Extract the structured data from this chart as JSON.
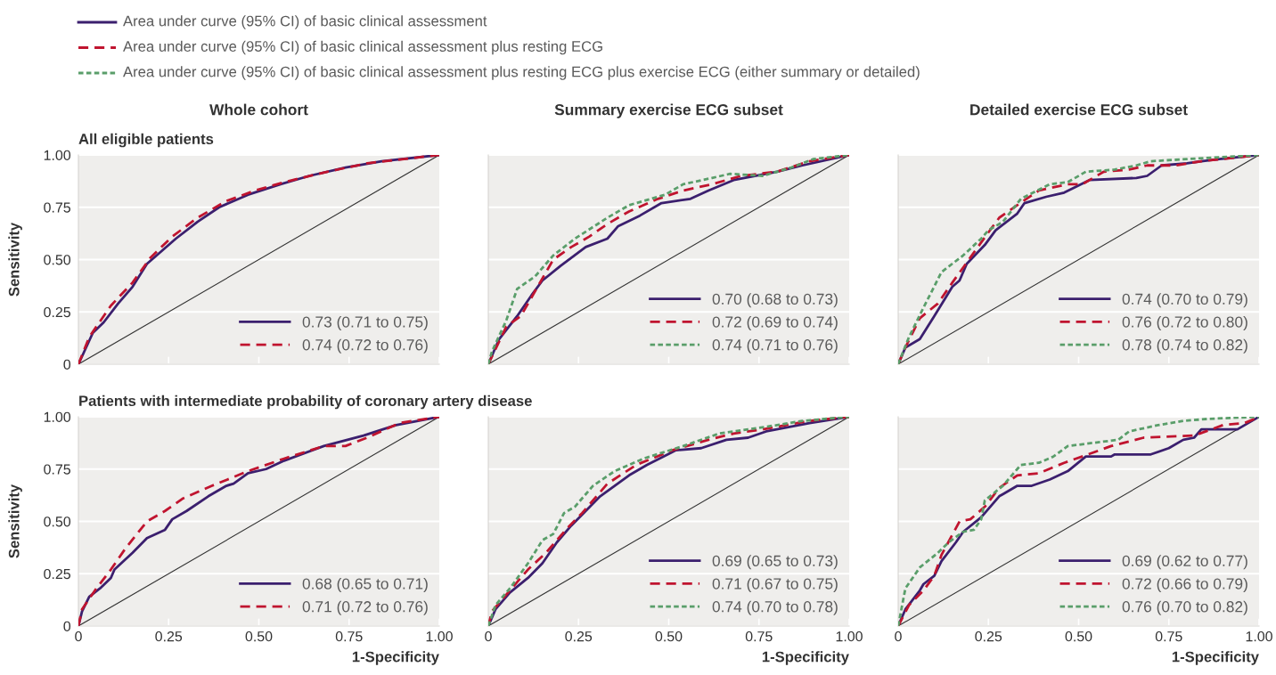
{
  "chart_data": [
    {
      "type": "line",
      "title": "Whole cohort",
      "subtitle": "All eligible patients",
      "ylabel": "Sensitivity",
      "annotations": [
        "Area under curve (95% CI) of basic clinical assessment",
        "Area under curve (95% CI) of basic clinical assessment plus resting ECG",
        "Area under curve (95% CI) of basic clinical assessment plus resting ECG plus exercise ECG (either summary or detailed)"
      ],
      "xlim": [
        0,
        1
      ],
      "ylim": [
        0,
        1
      ],
      "xticks": [
        {
          "value": 0,
          "label": null
        },
        {
          "value": 0.25,
          "label": null
        },
        {
          "value": 0.5,
          "label": null
        },
        {
          "value": 0.75,
          "label": null
        },
        {
          "value": 1,
          "label": null
        }
      ],
      "yticks": [
        {
          "value": 0,
          "label": "0"
        },
        {
          "value": 0.25,
          "label": "0.25"
        },
        {
          "value": 0.5,
          "label": "0.50"
        },
        {
          "value": 0.75,
          "label": "0.75"
        },
        {
          "value": 1,
          "label": "1.00"
        }
      ],
      "grid": "y",
      "legend": "bottom right",
      "tick_labels": "y",
      "series": [
        {
          "color": "#333333",
          "line_style": "solid",
          "x": [
            0,
            1
          ],
          "values": [
            0,
            1
          ]
        },
        {
          "name": "0.73 (0.71 to 0.75)",
          "color": "#3b1f6e",
          "line_style": "solid",
          "x": [
            0,
            0.04,
            0.07,
            0.11,
            0.15,
            0.19,
            0.27,
            0.33,
            0.39,
            0.47,
            0.56,
            0.64,
            0.74,
            0.84,
            1
          ],
          "values": [
            0,
            0.15,
            0.2,
            0.29,
            0.37,
            0.48,
            0.6,
            0.68,
            0.75,
            0.81,
            0.86,
            0.9,
            0.94,
            0.97,
            1
          ]
        },
        {
          "name": "0.74 (0.72 to 0.76)",
          "color": "#c0142f",
          "line_style": "dashed",
          "x": [
            0,
            0.03,
            0.09,
            0.15,
            0.2,
            0.26,
            0.33,
            0.41,
            0.49,
            0.57,
            0.69,
            0.8,
            1
          ],
          "values": [
            0,
            0.13,
            0.28,
            0.39,
            0.51,
            0.61,
            0.7,
            0.78,
            0.83,
            0.87,
            0.92,
            0.96,
            1
          ]
        }
      ]
    },
    {
      "type": "line",
      "title": "Summary exercise ECG subset",
      "xlim": [
        0,
        1
      ],
      "ylim": [
        0,
        1
      ],
      "xticks": [
        {
          "value": 0,
          "label": null
        },
        {
          "value": 0.25,
          "label": null
        },
        {
          "value": 0.5,
          "label": null
        },
        {
          "value": 0.75,
          "label": null
        },
        {
          "value": 1,
          "label": null
        }
      ],
      "yticks": [
        {
          "value": 0,
          "label": null
        },
        {
          "value": 0.25,
          "label": null
        },
        {
          "value": 0.5,
          "label": null
        },
        {
          "value": 0.75,
          "label": null
        },
        {
          "value": 1,
          "label": null
        }
      ],
      "grid": "y",
      "legend": "bottom right",
      "tick_labels": false,
      "series": [
        {
          "color": "#333333",
          "line_style": "solid",
          "x": [
            0,
            1
          ],
          "values": [
            0,
            1
          ]
        },
        {
          "name": "0.70 (0.68 to 0.73)",
          "color": "#3b1f6e",
          "line_style": "solid",
          "x": [
            0,
            0.03,
            0.08,
            0.12,
            0.15,
            0.2,
            0.27,
            0.33,
            0.36,
            0.42,
            0.48,
            0.56,
            0.61,
            0.68,
            0.8,
            0.87,
            1
          ],
          "values": [
            0,
            0.12,
            0.23,
            0.33,
            0.4,
            0.47,
            0.56,
            0.6,
            0.66,
            0.71,
            0.77,
            0.79,
            0.83,
            0.88,
            0.92,
            0.95,
            1
          ]
        },
        {
          "name": "0.72 (0.69 to 0.74)",
          "color": "#c0142f",
          "line_style": "dashed",
          "x": [
            0,
            0.05,
            0.09,
            0.13,
            0.18,
            0.23,
            0.28,
            0.33,
            0.39,
            0.47,
            0.54,
            0.62,
            0.7,
            0.8,
            0.89,
            1
          ],
          "values": [
            0,
            0.18,
            0.23,
            0.35,
            0.5,
            0.56,
            0.61,
            0.67,
            0.73,
            0.79,
            0.83,
            0.86,
            0.9,
            0.92,
            0.97,
            1
          ]
        },
        {
          "name": "0.74 (0.71 to 0.76)",
          "color": "#5a9e6a",
          "line_style": "dotted",
          "x": [
            0,
            0.01,
            0.05,
            0.08,
            0.13,
            0.18,
            0.24,
            0.33,
            0.39,
            0.49,
            0.54,
            0.62,
            0.67,
            0.76,
            0.84,
            0.9,
            1
          ],
          "values": [
            0,
            0.06,
            0.21,
            0.36,
            0.42,
            0.52,
            0.6,
            0.7,
            0.76,
            0.81,
            0.86,
            0.89,
            0.91,
            0.9,
            0.94,
            0.98,
            1
          ]
        }
      ]
    },
    {
      "type": "line",
      "title": "Detailed exercise ECG subset",
      "xlim": [
        0,
        1
      ],
      "ylim": [
        0,
        1
      ],
      "xticks": [
        {
          "value": 0,
          "label": null
        },
        {
          "value": 0.25,
          "label": null
        },
        {
          "value": 0.5,
          "label": null
        },
        {
          "value": 0.75,
          "label": null
        },
        {
          "value": 1,
          "label": null
        }
      ],
      "yticks": [
        {
          "value": 0,
          "label": null
        },
        {
          "value": 0.25,
          "label": null
        },
        {
          "value": 0.5,
          "label": null
        },
        {
          "value": 0.75,
          "label": null
        },
        {
          "value": 1,
          "label": null
        }
      ],
      "grid": "y",
      "legend": "bottom right",
      "tick_labels": false,
      "series": [
        {
          "color": "#333333",
          "line_style": "solid",
          "x": [
            0,
            1
          ],
          "values": [
            0,
            1
          ]
        },
        {
          "name": "0.74 (0.70 to 0.79)",
          "color": "#3b1f6e",
          "line_style": "solid",
          "x": [
            0,
            0.02,
            0.06,
            0.1,
            0.15,
            0.17,
            0.19,
            0.24,
            0.27,
            0.33,
            0.35,
            0.41,
            0.46,
            0.53,
            0.66,
            0.69,
            0.73,
            0.8,
            0.84,
            0.89,
            1
          ],
          "values": [
            0,
            0.08,
            0.12,
            0.23,
            0.37,
            0.4,
            0.48,
            0.57,
            0.64,
            0.72,
            0.77,
            0.8,
            0.82,
            0.88,
            0.89,
            0.9,
            0.95,
            0.96,
            0.97,
            0.98,
            1
          ]
        },
        {
          "name": "0.76 (0.72 to 0.80)",
          "color": "#c0142f",
          "line_style": "dashed",
          "x": [
            0,
            0.02,
            0.06,
            0.11,
            0.15,
            0.2,
            0.25,
            0.28,
            0.33,
            0.39,
            0.47,
            0.51,
            0.57,
            0.64,
            0.69,
            0.77,
            0.84,
            1
          ],
          "values": [
            0,
            0.08,
            0.22,
            0.29,
            0.39,
            0.51,
            0.63,
            0.7,
            0.76,
            0.83,
            0.86,
            0.86,
            0.92,
            0.93,
            0.95,
            0.95,
            0.97,
            1
          ]
        },
        {
          "name": "0.78 (0.74 to 0.82)",
          "color": "#5a9e6a",
          "line_style": "dotted",
          "x": [
            0,
            0.03,
            0.07,
            0.12,
            0.18,
            0.23,
            0.25,
            0.29,
            0.34,
            0.42,
            0.47,
            0.52,
            0.6,
            0.66,
            0.7,
            0.8,
            1
          ],
          "values": [
            0,
            0.13,
            0.27,
            0.44,
            0.52,
            0.6,
            0.64,
            0.68,
            0.79,
            0.86,
            0.87,
            0.92,
            0.93,
            0.95,
            0.97,
            0.98,
            1
          ]
        }
      ]
    },
    {
      "type": "line",
      "subtitle": "Patients with intermediate probability of coronary artery disease",
      "xlabel": "1-Specificity",
      "ylabel": "Sensitivity",
      "xlim": [
        0,
        1
      ],
      "ylim": [
        0,
        1
      ],
      "xticks": [
        {
          "value": 0,
          "label": "0"
        },
        {
          "value": 0.25,
          "label": "0.25"
        },
        {
          "value": 0.5,
          "label": "0.50"
        },
        {
          "value": 0.75,
          "label": "0.75"
        },
        {
          "value": 1,
          "label": "1.00"
        }
      ],
      "yticks": [
        {
          "value": 0,
          "label": "0"
        },
        {
          "value": 0.25,
          "label": "0.25"
        },
        {
          "value": 0.5,
          "label": "0.50"
        },
        {
          "value": 0.75,
          "label": "0.75"
        },
        {
          "value": 1,
          "label": "1.00"
        }
      ],
      "grid": "y",
      "legend": "bottom right",
      "series": [
        {
          "color": "#333333",
          "line_style": "solid",
          "x": [
            0,
            1
          ],
          "values": [
            0,
            1
          ]
        },
        {
          "name": "0.68 (0.65 to 0.71)",
          "color": "#3b1f6e",
          "line_style": "solid",
          "x": [
            0,
            0.01,
            0.03,
            0.06,
            0.09,
            0.1,
            0.15,
            0.19,
            0.24,
            0.26,
            0.3,
            0.36,
            0.41,
            0.43,
            0.47,
            0.52,
            0.57,
            0.68,
            0.79,
            0.88,
            1
          ],
          "values": [
            0,
            0.07,
            0.14,
            0.18,
            0.23,
            0.27,
            0.35,
            0.42,
            0.46,
            0.51,
            0.55,
            0.62,
            0.67,
            0.68,
            0.73,
            0.75,
            0.79,
            0.86,
            0.91,
            0.96,
            1
          ]
        },
        {
          "name": "0.71 (0.72 to 0.76)",
          "color": "#c0142f",
          "line_style": "dashed",
          "x": [
            0,
            0.01,
            0.05,
            0.09,
            0.13,
            0.19,
            0.24,
            0.29,
            0.37,
            0.47,
            0.57,
            0.68,
            0.74,
            0.8,
            0.89,
            1
          ],
          "values": [
            0,
            0.08,
            0.18,
            0.27,
            0.37,
            0.5,
            0.55,
            0.61,
            0.67,
            0.74,
            0.8,
            0.86,
            0.86,
            0.9,
            0.97,
            1
          ]
        }
      ]
    },
    {
      "type": "line",
      "xlabel": "1-Specificity",
      "xlim": [
        0,
        1
      ],
      "ylim": [
        0,
        1
      ],
      "xticks": [
        {
          "value": 0,
          "label": "0"
        },
        {
          "value": 0.25,
          "label": "0.25"
        },
        {
          "value": 0.5,
          "label": "0.50"
        },
        {
          "value": 0.75,
          "label": "0.75"
        },
        {
          "value": 1,
          "label": "1.00"
        }
      ],
      "yticks": [
        {
          "value": 0,
          "label": null
        },
        {
          "value": 0.25,
          "label": null
        },
        {
          "value": 0.5,
          "label": null
        },
        {
          "value": 0.75,
          "label": null
        },
        {
          "value": 1,
          "label": null
        }
      ],
      "grid": "y",
      "legend": "bottom right",
      "tick_labels": "x",
      "series": [
        {
          "color": "#333333",
          "line_style": "solid",
          "x": [
            0,
            1
          ],
          "values": [
            0,
            1
          ]
        },
        {
          "name": "0.69 (0.65 to 0.73)",
          "color": "#3b1f6e",
          "line_style": "solid",
          "x": [
            0,
            0.02,
            0.06,
            0.11,
            0.15,
            0.19,
            0.23,
            0.27,
            0.31,
            0.39,
            0.44,
            0.52,
            0.59,
            0.66,
            0.72,
            0.77,
            0.89,
            1
          ],
          "values": [
            0,
            0.08,
            0.16,
            0.23,
            0.3,
            0.4,
            0.48,
            0.55,
            0.62,
            0.72,
            0.77,
            0.84,
            0.85,
            0.89,
            0.9,
            0.93,
            0.97,
            1
          ]
        },
        {
          "name": "0.71 (0.67 to 0.75)",
          "color": "#c0142f",
          "line_style": "dashed",
          "x": [
            0,
            0.01,
            0.06,
            0.11,
            0.16,
            0.22,
            0.26,
            0.33,
            0.41,
            0.51,
            0.61,
            0.68,
            0.76,
            0.89,
            1
          ],
          "values": [
            0,
            0.07,
            0.17,
            0.27,
            0.35,
            0.47,
            0.54,
            0.68,
            0.77,
            0.84,
            0.89,
            0.92,
            0.94,
            0.98,
            1
          ]
        },
        {
          "name": "0.74 (0.70 to 0.78)",
          "color": "#5a9e6a",
          "line_style": "dotted",
          "x": [
            0,
            0.02,
            0.06,
            0.11,
            0.15,
            0.18,
            0.21,
            0.24,
            0.29,
            0.35,
            0.43,
            0.54,
            0.64,
            0.72,
            0.8,
            0.87,
            1
          ],
          "values": [
            0,
            0.1,
            0.18,
            0.3,
            0.41,
            0.44,
            0.54,
            0.57,
            0.67,
            0.74,
            0.8,
            0.86,
            0.92,
            0.94,
            0.96,
            0.98,
            1
          ]
        }
      ]
    },
    {
      "type": "line",
      "xlabel": "1-Specificity",
      "xlim": [
        0,
        1
      ],
      "ylim": [
        0,
        1
      ],
      "xticks": [
        {
          "value": 0,
          "label": "0"
        },
        {
          "value": 0.25,
          "label": "0.25"
        },
        {
          "value": 0.5,
          "label": "0.50"
        },
        {
          "value": 0.75,
          "label": "0.75"
        },
        {
          "value": 1,
          "label": "1.00"
        }
      ],
      "yticks": [
        {
          "value": 0,
          "label": null
        },
        {
          "value": 0.25,
          "label": null
        },
        {
          "value": 0.5,
          "label": null
        },
        {
          "value": 0.75,
          "label": null
        },
        {
          "value": 1,
          "label": null
        }
      ],
      "grid": "y",
      "legend": "bottom right",
      "tick_labels": "x",
      "series": [
        {
          "color": "#333333",
          "line_style": "solid",
          "x": [
            0,
            1
          ],
          "values": [
            0,
            1
          ]
        },
        {
          "name": "0.69 (0.62 to 0.77)",
          "color": "#3b1f6e",
          "line_style": "solid",
          "x": [
            0,
            0.02,
            0.06,
            0.07,
            0.1,
            0.12,
            0.16,
            0.18,
            0.23,
            0.28,
            0.29,
            0.33,
            0.37,
            0.42,
            0.47,
            0.52,
            0.59,
            0.6,
            0.7,
            0.75,
            0.79,
            0.82,
            0.84,
            0.94,
            1
          ],
          "values": [
            0,
            0.08,
            0.17,
            0.2,
            0.24,
            0.31,
            0.4,
            0.45,
            0.52,
            0.62,
            0.63,
            0.67,
            0.67,
            0.7,
            0.74,
            0.81,
            0.81,
            0.82,
            0.82,
            0.85,
            0.89,
            0.9,
            0.94,
            0.94,
            1
          ]
        },
        {
          "name": "0.72 (0.66 to 0.79)",
          "color": "#c0142f",
          "line_style": "dashed",
          "x": [
            0,
            0.03,
            0.07,
            0.1,
            0.12,
            0.17,
            0.2,
            0.24,
            0.28,
            0.33,
            0.39,
            0.46,
            0.51,
            0.59,
            0.68,
            0.82,
            0.9,
            0.96,
            1
          ],
          "values": [
            0,
            0.1,
            0.17,
            0.24,
            0.34,
            0.5,
            0.51,
            0.57,
            0.66,
            0.72,
            0.73,
            0.78,
            0.81,
            0.86,
            0.9,
            0.91,
            0.96,
            0.97,
            1
          ]
        },
        {
          "name": "0.76 (0.70 to 0.82)",
          "color": "#5a9e6a",
          "line_style": "dotted",
          "x": [
            0,
            0.02,
            0.06,
            0.11,
            0.14,
            0.18,
            0.21,
            0.23,
            0.24,
            0.29,
            0.34,
            0.39,
            0.43,
            0.47,
            0.61,
            0.64,
            0.72,
            0.79,
            0.86,
            1
          ],
          "values": [
            0,
            0.18,
            0.28,
            0.35,
            0.4,
            0.45,
            0.46,
            0.51,
            0.6,
            0.67,
            0.77,
            0.78,
            0.81,
            0.86,
            0.89,
            0.93,
            0.96,
            0.98,
            0.99,
            1
          ]
        }
      ]
    }
  ]
}
